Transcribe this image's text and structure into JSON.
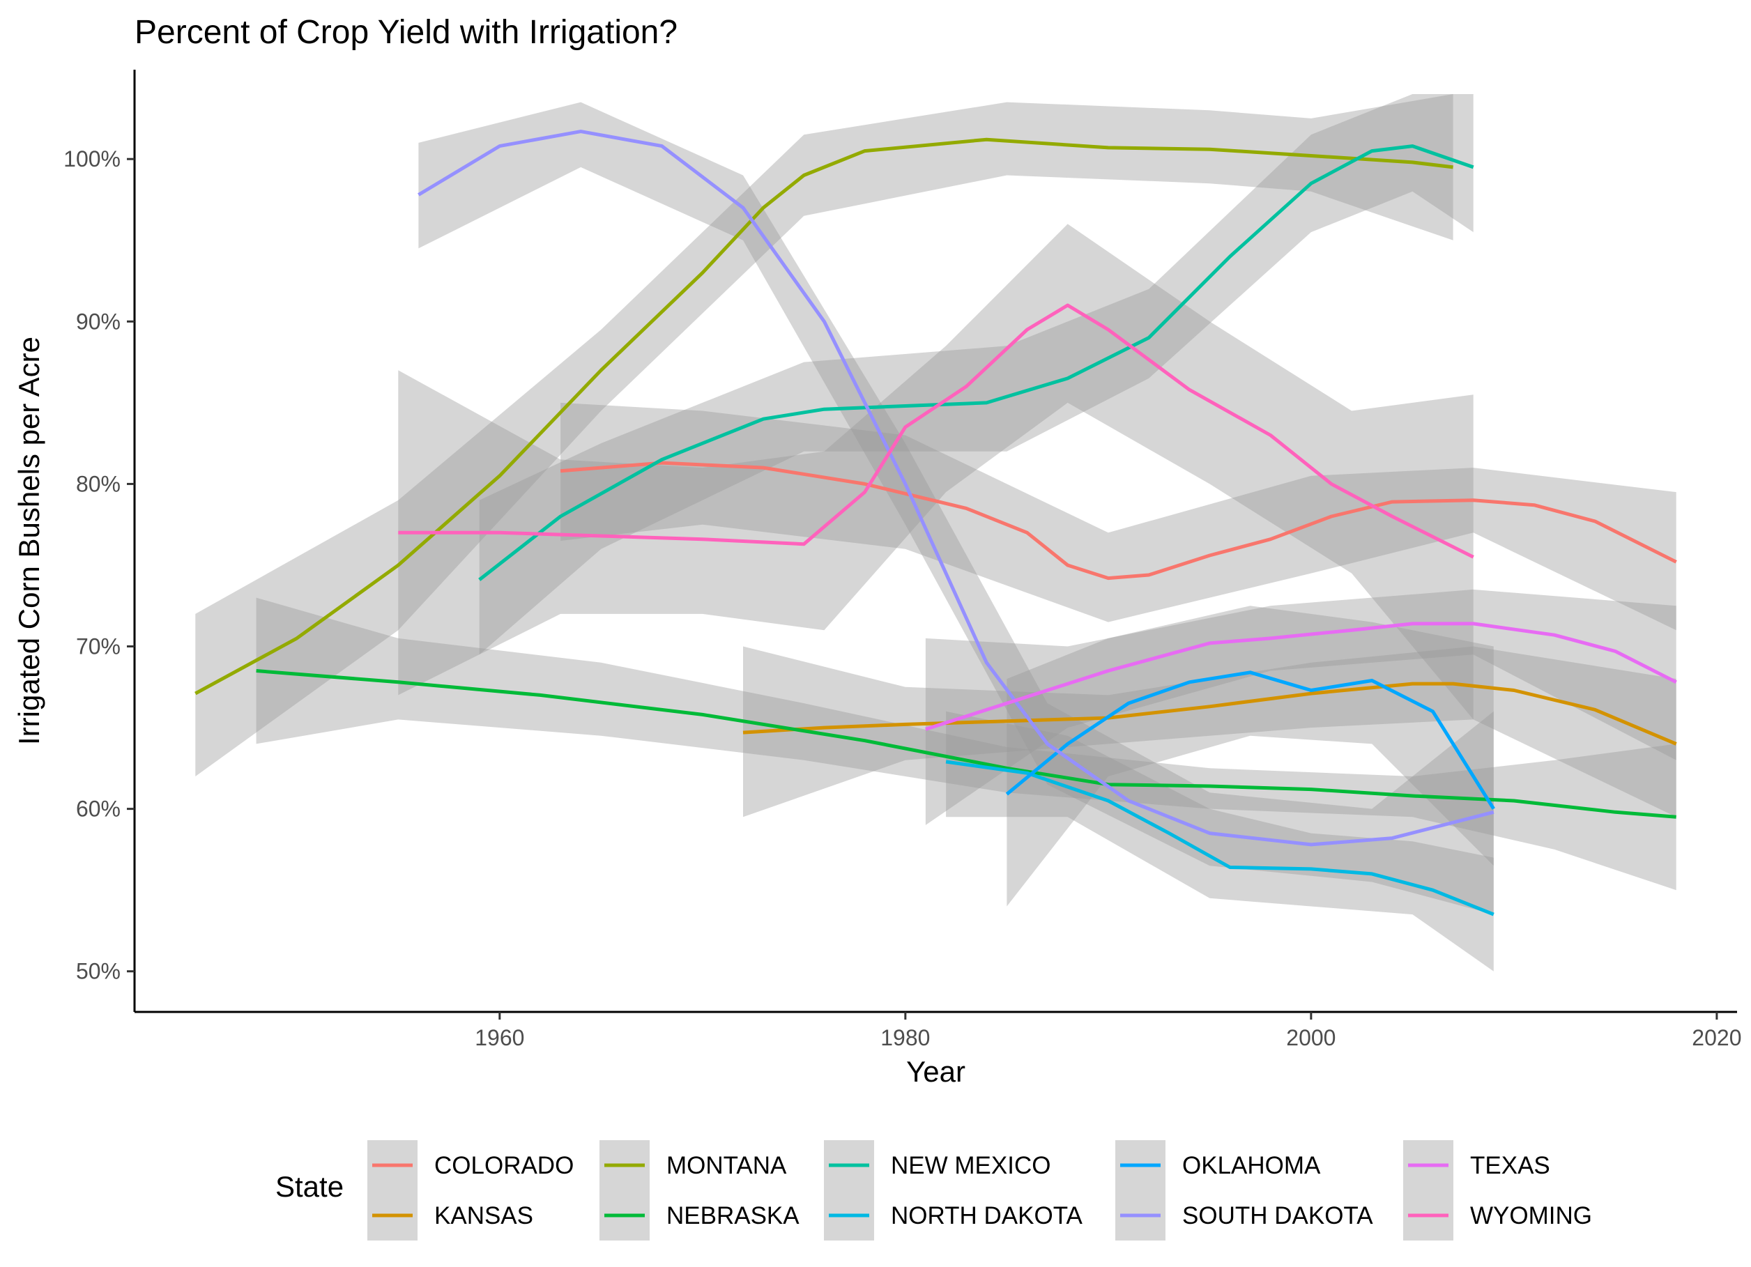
{
  "chart_data": {
    "type": "line",
    "title": "Percent of Crop Yield with Irrigation?",
    "xlabel": "Year",
    "ylabel": "Irrigated Corn Bushels per Acre",
    "xlim": [
      1942,
      2021
    ],
    "ylim": [
      47.5,
      105.5
    ],
    "x_ticks": [
      1960,
      1980,
      2000,
      2020
    ],
    "y_ticks": [
      50,
      60,
      70,
      80,
      90,
      100
    ],
    "y_tick_format": "percent",
    "grid": false,
    "legend": {
      "title": "State",
      "position": "bottom"
    },
    "series": [
      {
        "name": "COLORADO",
        "color": "#F8766D",
        "points": [
          [
            1963,
            80.8
          ],
          [
            1968,
            81.3
          ],
          [
            1973,
            81.0
          ],
          [
            1978,
            80.0
          ],
          [
            1983,
            78.5
          ],
          [
            1986,
            77.0
          ],
          [
            1988,
            75.0
          ],
          [
            1990,
            74.2
          ],
          [
            1992,
            74.4
          ],
          [
            1995,
            75.6
          ],
          [
            1998,
            76.6
          ],
          [
            2001,
            78.0
          ],
          [
            2004,
            78.9
          ],
          [
            2008,
            79.0
          ],
          [
            2011,
            78.7
          ],
          [
            2014,
            77.7
          ],
          [
            2018,
            75.2
          ]
        ],
        "band": [
          [
            1963,
            85.0,
            76.5
          ],
          [
            1970,
            84.5,
            77.5
          ],
          [
            1980,
            83.0,
            76.0
          ],
          [
            1990,
            77.0,
            71.5
          ],
          [
            2000,
            80.5,
            74.5
          ],
          [
            2008,
            81.0,
            77.0
          ],
          [
            2018,
            79.5,
            71.0
          ]
        ]
      },
      {
        "name": "KANSAS",
        "color": "#D39200",
        "points": [
          [
            1972,
            64.7
          ],
          [
            1976,
            65.0
          ],
          [
            1980,
            65.2
          ],
          [
            1985,
            65.4
          ],
          [
            1990,
            65.6
          ],
          [
            1995,
            66.3
          ],
          [
            2000,
            67.1
          ],
          [
            2005,
            67.7
          ],
          [
            2007,
            67.7
          ],
          [
            2010,
            67.3
          ],
          [
            2014,
            66.1
          ],
          [
            2018,
            64.0
          ]
        ],
        "band": [
          [
            1972,
            70.0,
            59.5
          ],
          [
            1980,
            67.5,
            63.0
          ],
          [
            1990,
            67.0,
            64.0
          ],
          [
            2000,
            69.0,
            65.0
          ],
          [
            2008,
            70.0,
            65.5
          ],
          [
            2018,
            68.0,
            59.5
          ]
        ]
      },
      {
        "name": "MONTANA",
        "color": "#93AA00",
        "points": [
          [
            1945,
            67.1
          ],
          [
            1950,
            70.5
          ],
          [
            1955,
            75.0
          ],
          [
            1960,
            80.5
          ],
          [
            1965,
            87.0
          ],
          [
            1970,
            93.0
          ],
          [
            1973,
            97.0
          ],
          [
            1975,
            99.0
          ],
          [
            1978,
            100.5
          ],
          [
            1984,
            101.2
          ],
          [
            1990,
            100.7
          ],
          [
            1995,
            100.6
          ],
          [
            2000,
            100.2
          ],
          [
            2005,
            99.8
          ],
          [
            2007,
            99.5
          ]
        ],
        "band": [
          [
            1945,
            72.0,
            62.0
          ],
          [
            1955,
            79.0,
            71.0
          ],
          [
            1965,
            89.5,
            84.5
          ],
          [
            1975,
            101.5,
            96.5
          ],
          [
            1985,
            103.5,
            99.0
          ],
          [
            1995,
            103.0,
            98.5
          ],
          [
            2000,
            102.5,
            98.0
          ],
          [
            2007,
            104.0,
            95.0
          ]
        ]
      },
      {
        "name": "NEBRASKA",
        "color": "#00BA38",
        "points": [
          [
            1948,
            68.5
          ],
          [
            1955,
            67.8
          ],
          [
            1962,
            67.0
          ],
          [
            1970,
            65.8
          ],
          [
            1978,
            64.2
          ],
          [
            1985,
            62.5
          ],
          [
            1990,
            61.5
          ],
          [
            1995,
            61.4
          ],
          [
            2000,
            61.2
          ],
          [
            2005,
            60.8
          ],
          [
            2010,
            60.5
          ],
          [
            2015,
            59.8
          ],
          [
            2018,
            59.5
          ]
        ],
        "band": [
          [
            1948,
            73.0,
            64.0
          ],
          [
            1955,
            70.5,
            65.5
          ],
          [
            1965,
            69.0,
            64.5
          ],
          [
            1975,
            66.5,
            63.0
          ],
          [
            1985,
            63.8,
            61.0
          ],
          [
            1995,
            62.5,
            60.0
          ],
          [
            2005,
            62.0,
            59.5
          ],
          [
            2012,
            63.0,
            57.5
          ],
          [
            2018,
            64.0,
            55.0
          ]
        ]
      },
      {
        "name": "NEW MEXICO",
        "color": "#00C19F",
        "points": [
          [
            1959,
            74.1
          ],
          [
            1963,
            78.0
          ],
          [
            1968,
            81.5
          ],
          [
            1973,
            84.0
          ],
          [
            1976,
            84.6
          ],
          [
            1980,
            84.8
          ],
          [
            1984,
            85.0
          ],
          [
            1988,
            86.5
          ],
          [
            1992,
            89.0
          ],
          [
            1996,
            94.0
          ],
          [
            2000,
            98.5
          ],
          [
            2003,
            100.5
          ],
          [
            2005,
            100.8
          ],
          [
            2008,
            99.5
          ]
        ],
        "band": [
          [
            1959,
            79.0,
            69.5
          ],
          [
            1965,
            82.5,
            76.0
          ],
          [
            1975,
            87.5,
            82.0
          ],
          [
            1985,
            88.5,
            82.0
          ],
          [
            1992,
            92.0,
            86.5
          ],
          [
            2000,
            101.5,
            95.5
          ],
          [
            2005,
            104.0,
            98.0
          ],
          [
            2008,
            104.0,
            95.5
          ]
        ]
      },
      {
        "name": "NORTH DAKOTA",
        "color": "#00B9E3",
        "points": [
          [
            1982,
            62.9
          ],
          [
            1986,
            62.2
          ],
          [
            1990,
            60.5
          ],
          [
            1993,
            58.5
          ],
          [
            1996,
            56.4
          ],
          [
            2000,
            56.3
          ],
          [
            2003,
            56.0
          ],
          [
            2006,
            55.0
          ],
          [
            2009,
            53.5
          ]
        ],
        "band": [
          [
            1982,
            66.0,
            59.5
          ],
          [
            1988,
            64.5,
            59.5
          ],
          [
            1995,
            60.0,
            54.5
          ],
          [
            2000,
            58.5,
            54.0
          ],
          [
            2005,
            58.0,
            53.5
          ],
          [
            2009,
            57.0,
            50.0
          ]
        ]
      },
      {
        "name": "OKLAHOMA",
        "color": "#00A7FF",
        "points": [
          [
            1985,
            60.9
          ],
          [
            1988,
            64.0
          ],
          [
            1991,
            66.5
          ],
          [
            1994,
            67.8
          ],
          [
            1997,
            68.4
          ],
          [
            2000,
            67.3
          ],
          [
            2003,
            67.9
          ],
          [
            2006,
            66.0
          ],
          [
            2009,
            60.0
          ]
        ],
        "band": [
          [
            1985,
            68.0,
            54.0
          ],
          [
            1990,
            70.5,
            62.0
          ],
          [
            1997,
            72.5,
            64.5
          ],
          [
            2003,
            71.5,
            64.0
          ],
          [
            2009,
            70.0,
            56.5
          ]
        ]
      },
      {
        "name": "SOUTH DAKOTA",
        "color": "#9590FF",
        "points": [
          [
            1956,
            97.8
          ],
          [
            1960,
            100.8
          ],
          [
            1964,
            101.7
          ],
          [
            1968,
            100.8
          ],
          [
            1972,
            97.0
          ],
          [
            1976,
            90.0
          ],
          [
            1980,
            80.0
          ],
          [
            1984,
            69.0
          ],
          [
            1987,
            64.0
          ],
          [
            1991,
            60.5
          ],
          [
            1995,
            58.5
          ],
          [
            2000,
            57.8
          ],
          [
            2004,
            58.2
          ],
          [
            2009,
            59.8
          ]
        ],
        "band": [
          [
            1956,
            101.0,
            94.5
          ],
          [
            1964,
            103.5,
            99.5
          ],
          [
            1972,
            99.0,
            95.0
          ],
          [
            1980,
            82.5,
            77.5
          ],
          [
            1987,
            66.5,
            61.5
          ],
          [
            1995,
            61.0,
            56.5
          ],
          [
            2003,
            60.0,
            55.5
          ],
          [
            2009,
            66.0,
            53.5
          ]
        ]
      },
      {
        "name": "TEXAS",
        "color": "#E76BF3",
        "points": [
          [
            1981,
            64.9
          ],
          [
            1985,
            66.5
          ],
          [
            1990,
            68.5
          ],
          [
            1995,
            70.2
          ],
          [
            1998,
            70.5
          ],
          [
            2002,
            71.0
          ],
          [
            2005,
            71.4
          ],
          [
            2008,
            71.4
          ],
          [
            2012,
            70.7
          ],
          [
            2015,
            69.7
          ],
          [
            2018,
            67.8
          ]
        ],
        "band": [
          [
            1981,
            70.5,
            59.0
          ],
          [
            1988,
            70.0,
            65.0
          ],
          [
            1998,
            72.5,
            68.5
          ],
          [
            2008,
            73.5,
            69.5
          ],
          [
            2018,
            72.5,
            63.0
          ]
        ]
      },
      {
        "name": "WYOMING",
        "color": "#FF62BC",
        "points": [
          [
            1955,
            77.0
          ],
          [
            1960,
            77.0
          ],
          [
            1965,
            76.8
          ],
          [
            1970,
            76.6
          ],
          [
            1975,
            76.3
          ],
          [
            1978,
            79.5
          ],
          [
            1980,
            83.5
          ],
          [
            1983,
            86.0
          ],
          [
            1986,
            89.5
          ],
          [
            1988,
            91.0
          ],
          [
            1990,
            89.5
          ],
          [
            1994,
            85.8
          ],
          [
            1998,
            83.0
          ],
          [
            2001,
            80.0
          ],
          [
            2004,
            78.0
          ],
          [
            2008,
            75.5
          ]
        ],
        "band": [
          [
            1955,
            87.0,
            67.0
          ],
          [
            1963,
            81.5,
            72.0
          ],
          [
            1970,
            81.0,
            72.0
          ],
          [
            1976,
            82.0,
            71.0
          ],
          [
            1982,
            88.5,
            79.5
          ],
          [
            1988,
            96.0,
            85.0
          ],
          [
            1995,
            90.0,
            80.0
          ],
          [
            2002,
            84.5,
            74.5
          ],
          [
            2008,
            85.5,
            65.5
          ]
        ]
      }
    ]
  }
}
